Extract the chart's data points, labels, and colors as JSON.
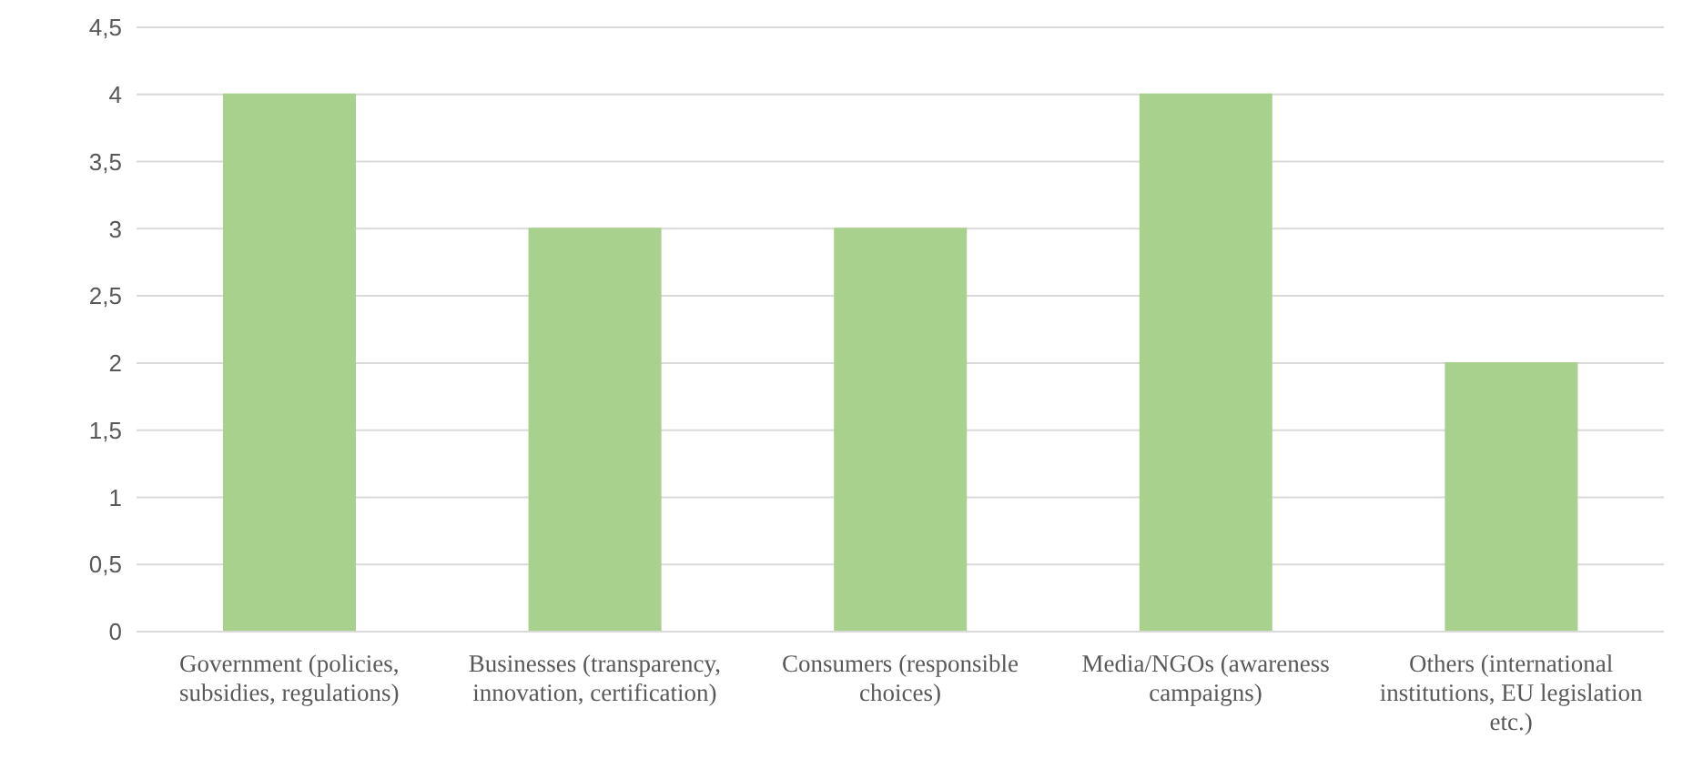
{
  "chart_data": {
    "type": "bar",
    "categories": [
      "Government (policies, subsidies, regulations)",
      "Businesses (transparency, innovation, certification)",
      "Consumers (responsible choices)",
      "Media/NGOs (awareness campaigns)",
      "Others (international institutions, EU legislation etc.)"
    ],
    "values": [
      4,
      3,
      3,
      4,
      2
    ],
    "color": "#a9d18e",
    "ylim": [
      0,
      4.5
    ],
    "yticks": [
      0,
      {
        "value": 0.5,
        "label": "0,5"
      },
      1,
      {
        "value": 1.5,
        "label": "1,5"
      },
      2,
      {
        "value": 2.5,
        "label": "2,5"
      },
      3,
      {
        "value": 3.5,
        "label": "3,5"
      },
      4,
      {
        "value": 4.5,
        "label": "4,5"
      }
    ],
    "grid": "y"
  }
}
